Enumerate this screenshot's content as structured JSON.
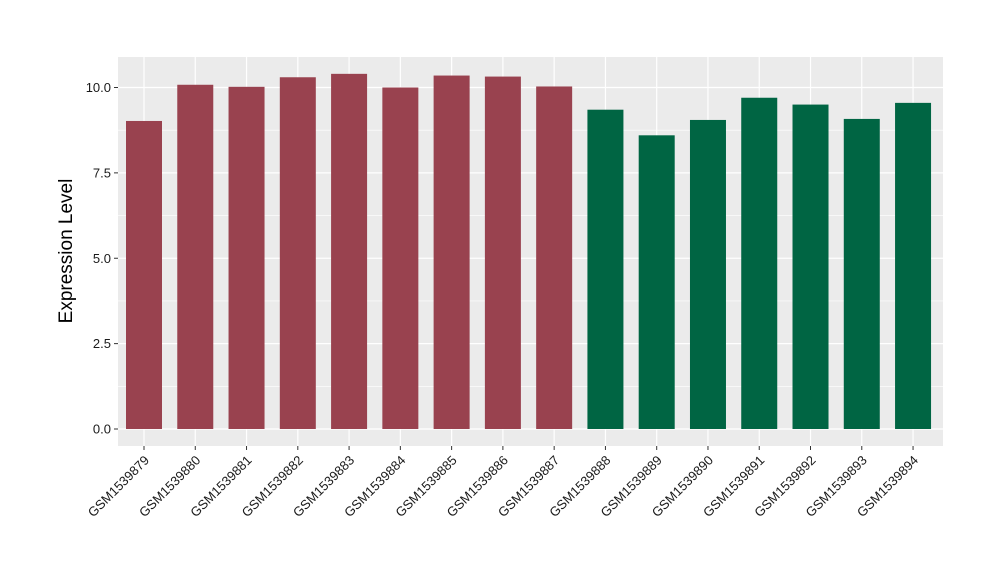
{
  "chart_data": {
    "type": "bar",
    "title": "",
    "xlabel": "",
    "ylabel": "Expression Level",
    "ylim": [
      0,
      10.9
    ],
    "yticks": [
      0.0,
      2.5,
      5.0,
      7.5,
      10.0
    ],
    "ytick_labels": [
      "0.0",
      "2.5",
      "5.0",
      "7.5",
      "10.0"
    ],
    "categories": [
      "GSM1539879",
      "GSM1539880",
      "GSM1539881",
      "GSM1539882",
      "GSM1539883",
      "GSM1539884",
      "GSM1539885",
      "GSM1539886",
      "GSM1539887",
      "GSM1539888",
      "GSM1539889",
      "GSM1539890",
      "GSM1539891",
      "GSM1539892",
      "GSM1539893",
      "GSM1539894"
    ],
    "values": [
      9.02,
      10.08,
      10.02,
      10.3,
      10.4,
      10.0,
      10.35,
      10.32,
      10.03,
      9.35,
      8.6,
      9.05,
      9.7,
      9.5,
      9.08,
      9.55
    ],
    "bar_colors": [
      "#99424f",
      "#99424f",
      "#99424f",
      "#99424f",
      "#99424f",
      "#99424f",
      "#99424f",
      "#99424f",
      "#99424f",
      "#006543",
      "#006543",
      "#006543",
      "#006543",
      "#006543",
      "#006543",
      "#006543"
    ],
    "grid": true,
    "legend": "none",
    "panel_background": "#ebebeb",
    "grid_color": "#ffffff"
  }
}
